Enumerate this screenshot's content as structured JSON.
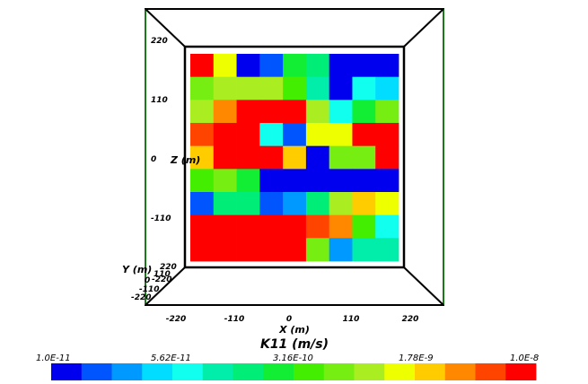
{
  "chart_data": {
    "type": "heatmap",
    "title": "",
    "xlabel": "X (m)",
    "ylabel": "Y (m)",
    "zlabel": "Z (m)",
    "x_ticks": [
      "-220",
      "-110",
      "0",
      "110",
      "220"
    ],
    "z_ticks": [
      "220",
      "110",
      "0",
      "-110"
    ],
    "y_ticks": [
      "220",
      "110",
      "0",
      "-110",
      "-220"
    ],
    "y_ticks_near": [
      "-220"
    ],
    "colorbar": {
      "title": "K11 (m/s)",
      "labels": [
        "1.0E-11",
        "5.62E-11",
        "3.16E-10",
        "1.78E-9",
        "1.0E-8"
      ],
      "colors": [
        "#0000ee",
        "#0055ff",
        "#0099ff",
        "#00ddff",
        "#11ffee",
        "#00eeaa",
        "#00ee77",
        "#11ee33",
        "#44ee00",
        "#77ee11",
        "#aaee22",
        "#eeff00",
        "#ffcc00",
        "#ff8800",
        "#ff4400",
        "#ff0000"
      ]
    },
    "grid": {
      "rows": 9,
      "cols": 9,
      "values": [
        [
          15,
          11,
          0,
          1,
          7,
          6,
          0,
          0,
          0
        ],
        [
          9,
          10,
          10,
          10,
          8,
          5,
          0,
          4,
          3
        ],
        [
          10,
          13,
          15,
          15,
          15,
          10,
          4,
          7,
          9
        ],
        [
          14,
          15,
          15,
          4,
          1,
          11,
          11,
          15,
          15
        ],
        [
          12,
          15,
          15,
          15,
          12,
          0,
          9,
          9,
          15
        ],
        [
          8,
          9,
          7,
          0,
          0,
          0,
          0,
          0,
          0
        ],
        [
          1,
          6,
          6,
          1,
          2,
          6,
          10,
          12,
          11
        ],
        [
          15,
          15,
          15,
          15,
          15,
          14,
          13,
          8,
          4
        ],
        [
          15,
          15,
          15,
          15,
          15,
          9,
          2,
          5,
          5
        ]
      ]
    }
  }
}
